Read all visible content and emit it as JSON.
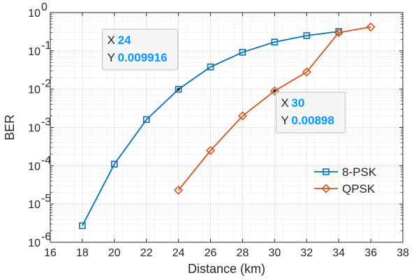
{
  "chart_data": {
    "type": "line",
    "xlabel": "Distance (km)",
    "ylabel": "BER",
    "xlim": [
      16,
      38
    ],
    "ylim": [
      1e-06,
      1
    ],
    "yscale": "log",
    "grid": "on (major and minor)",
    "legend_position": "lower-right",
    "x_ticks": [
      "16",
      "18",
      "20",
      "22",
      "24",
      "26",
      "28",
      "30",
      "32",
      "34",
      "36",
      "38"
    ],
    "y_ticks": [
      {
        "base": "10",
        "exp": "-6",
        "value": 1e-06
      },
      {
        "base": "10",
        "exp": "-5",
        "value": 1e-05
      },
      {
        "base": "10",
        "exp": "-4",
        "value": 0.0001
      },
      {
        "base": "10",
        "exp": "-3",
        "value": 0.001
      },
      {
        "base": "10",
        "exp": "-2",
        "value": 0.01
      },
      {
        "base": "10",
        "exp": "-1",
        "value": 0.1
      },
      {
        "base": "10",
        "exp": "0",
        "value": 1
      }
    ],
    "series": [
      {
        "name": "8-PSK",
        "color": "#0072BD",
        "marker": "square",
        "x": [
          18,
          20,
          22,
          24,
          26,
          28,
          30,
          32,
          34
        ],
        "y": [
          2.7e-06,
          0.00011,
          0.0016,
          0.009916,
          0.038,
          0.092,
          0.17,
          0.25,
          0.32
        ]
      },
      {
        "name": "QPSK",
        "color": "#D95319",
        "marker": "diamond",
        "x": [
          24,
          26,
          28,
          30,
          32,
          34,
          36
        ],
        "y": [
          2.3e-05,
          0.00025,
          0.002,
          0.00898,
          0.028,
          0.3,
          0.42
        ]
      }
    ],
    "datatips": [
      {
        "x_label": "X",
        "x_value": "24",
        "y_label": "Y",
        "y_value": "0.009916",
        "x": 24,
        "y": 0.009916
      },
      {
        "x_label": "X",
        "x_value": "30",
        "y_label": "Y",
        "y_value": "0.00898",
        "x": 30,
        "y": 0.00898
      }
    ],
    "colors": {
      "datatip_value": "#0099FF",
      "axis": "#262626",
      "grid": "#DFDFDF"
    }
  }
}
